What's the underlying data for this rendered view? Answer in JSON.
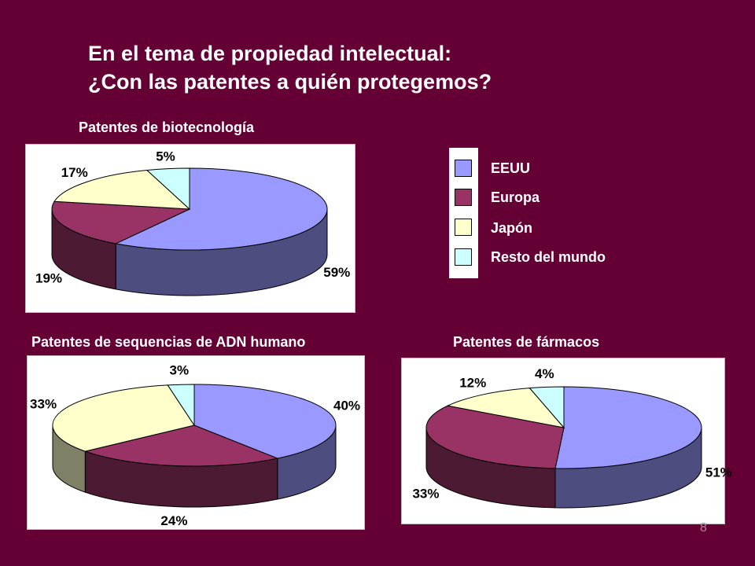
{
  "title_line1": "En el tema de propiedad intelectual:",
  "title_line2": "¿Con las patentes a quién protegemos?",
  "page_number": "8",
  "legend": [
    {
      "label": "EEUU",
      "color": "#9999ff"
    },
    {
      "label": "Europa",
      "color": "#993366"
    },
    {
      "label": "Japón",
      "color": "#ffffcc"
    },
    {
      "label": "Resto del mundo",
      "color": "#ccffff"
    }
  ],
  "chart_data": [
    {
      "type": "pie",
      "title": "Patentes de biotecnología",
      "categories": [
        "EEUU",
        "Europa",
        "Japón",
        "Resto del mundo"
      ],
      "values": [
        59,
        19,
        17,
        5
      ],
      "labels": [
        "59%",
        "19%",
        "17%",
        "5%"
      ],
      "legend_position": "right"
    },
    {
      "type": "pie",
      "title": "Patentes de sequencias de ADN humano",
      "categories": [
        "EEUU",
        "Europa",
        "Japón",
        "Resto del mundo"
      ],
      "values": [
        40,
        24,
        33,
        3
      ],
      "labels": [
        "40%",
        "24%",
        "33%",
        "3%"
      ]
    },
    {
      "type": "pie",
      "title": "Patentes de fármacos",
      "categories": [
        "EEUU",
        "Europa",
        "Japón",
        "Resto del mundo"
      ],
      "values": [
        51,
        33,
        12,
        4
      ],
      "labels": [
        "51%",
        "33%",
        "12%",
        "4%"
      ]
    }
  ]
}
